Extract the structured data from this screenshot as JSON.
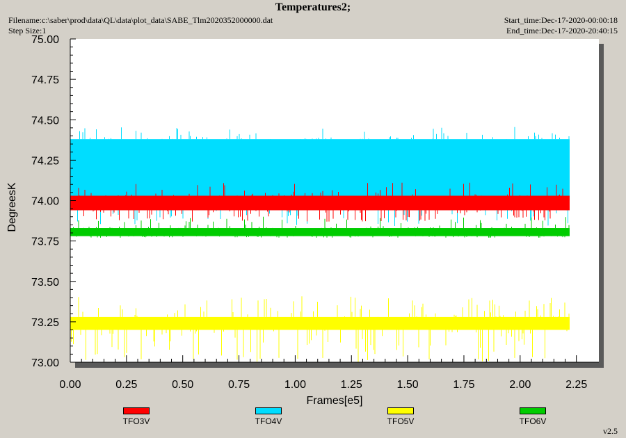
{
  "header": {
    "title": "Temperatures2;",
    "filename": "Filename:c:\\saber\\prod\\data\\QL\\data\\plot_data\\SABE_Tlm2020352000000.dat",
    "step_size": "Step Size:1",
    "start_time": "Start_time:Dec-17-2020-00:00:18",
    "end_time": "End_time:Dec-17-2020-20:40:15"
  },
  "version": "v2.5",
  "chart_data": {
    "type": "line",
    "title": "Temperatures2;",
    "xlabel": "Frames[e5]",
    "ylabel": "DegreesK",
    "xlim": [
      0,
      2.35
    ],
    "ylim": [
      73.0,
      75.0
    ],
    "x_ticks": [
      "0.00",
      "0.25",
      "0.50",
      "0.75",
      "1.00",
      "1.25",
      "1.50",
      "1.75",
      "2.00",
      "2.25"
    ],
    "y_ticks": [
      "73.00",
      "73.25",
      "73.50",
      "73.75",
      "74.00",
      "74.25",
      "74.50",
      "74.75",
      "75.00"
    ],
    "x_end": 2.22,
    "legend_position": "bottom",
    "series": [
      {
        "name": "TFO3V",
        "color": "#ff0000",
        "base_low": 73.94,
        "base_high": 74.03,
        "range": [
          73.87,
          74.12
        ],
        "typical": 73.97
      },
      {
        "name": "TFO4V",
        "color": "#00ddff",
        "base_low": 74.0,
        "base_high": 74.38,
        "range": [
          73.84,
          74.46
        ],
        "typical": 74.2
      },
      {
        "name": "TFO5V",
        "color": "#ffff00",
        "base_low": 73.2,
        "base_high": 73.28,
        "range": [
          73.0,
          73.41
        ],
        "typical": 73.25
      },
      {
        "name": "TFO6V",
        "color": "#00cc00",
        "base_low": 73.78,
        "base_high": 73.83,
        "range": [
          73.77,
          73.9
        ],
        "typical": 73.8
      }
    ]
  }
}
